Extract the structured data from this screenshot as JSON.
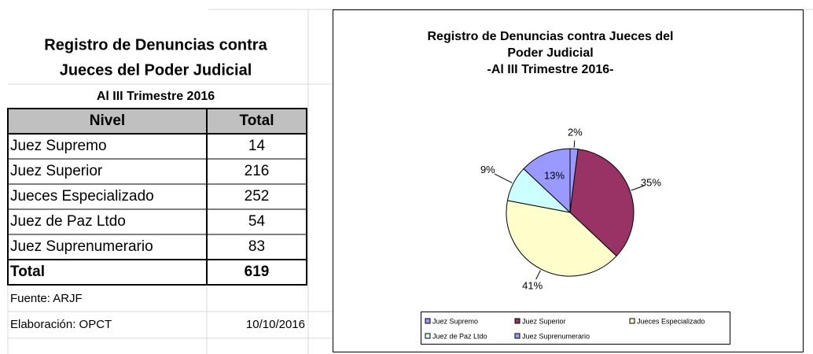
{
  "table": {
    "title": [
      "Registro de Denuncias contra",
      "Jueces del Poder Judicial"
    ],
    "subtitle": "Al III Trimestre 2016",
    "header": [
      "Nivel",
      "Total"
    ],
    "rows": [
      [
        "Juez Supremo",
        14
      ],
      [
        "Juez Superior",
        216
      ],
      [
        "Jueces Especializado",
        252
      ],
      [
        "Juez de Paz Ltdo",
        54
      ],
      [
        "Juez Suprenumerario",
        83
      ]
    ],
    "total": [
      "Total",
      619
    ],
    "source": "Fuente: ARJF",
    "author": "Elaboración: OPCT",
    "date": "10/10/2016"
  },
  "chart_data": {
    "type": "pie",
    "title": [
      "Registro de Denuncias contra Jueces del",
      "Poder Judicial",
      "-Al III Trimestre 2016-"
    ],
    "categories": [
      "Juez Supremo",
      "Juez Superior",
      "Jueces Especializado",
      "Juez de Paz Ltdo",
      "Juez Suprenumerario"
    ],
    "values": [
      2,
      35,
      41,
      9,
      13
    ],
    "value_labels": [
      "2%",
      "35%",
      "41%",
      "9%",
      "13%"
    ],
    "colors": [
      "#9999ff",
      "#993366",
      "#ffffcc",
      "#ccffff",
      "#9999ff"
    ],
    "legend": "bottom"
  }
}
